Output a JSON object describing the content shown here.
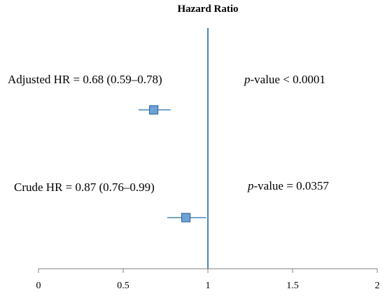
{
  "chart_data": {
    "type": "forest",
    "title": "Hazard Ratio",
    "xlim": [
      0,
      2
    ],
    "ticks": [
      {
        "value": 0,
        "label": "0"
      },
      {
        "value": 0.5,
        "label": "0.5"
      },
      {
        "value": 1,
        "label": "1"
      },
      {
        "value": 1.5,
        "label": "1.5"
      },
      {
        "value": 2,
        "label": "2"
      }
    ],
    "reference_line": 1,
    "rows": [
      {
        "label": "Adjusted HR = 0.68 (0.59–0.78)",
        "hr": 0.68,
        "ci_low": 0.59,
        "ci_high": 0.78,
        "p_label_italic": "p",
        "p_label_rest": "-value < 0.0001"
      },
      {
        "label": "Crude HR = 0.87 (0.76–0.99)",
        "hr": 0.87,
        "ci_low": 0.76,
        "ci_high": 0.99,
        "p_label_italic": "p",
        "p_label_rest": "-value = 0.0357"
      }
    ],
    "colors": {
      "line": "#4A86B8",
      "marker_fill": "#6FA3D8",
      "marker_stroke": "#2E6A9E",
      "axis": "#7F7F7F"
    }
  }
}
